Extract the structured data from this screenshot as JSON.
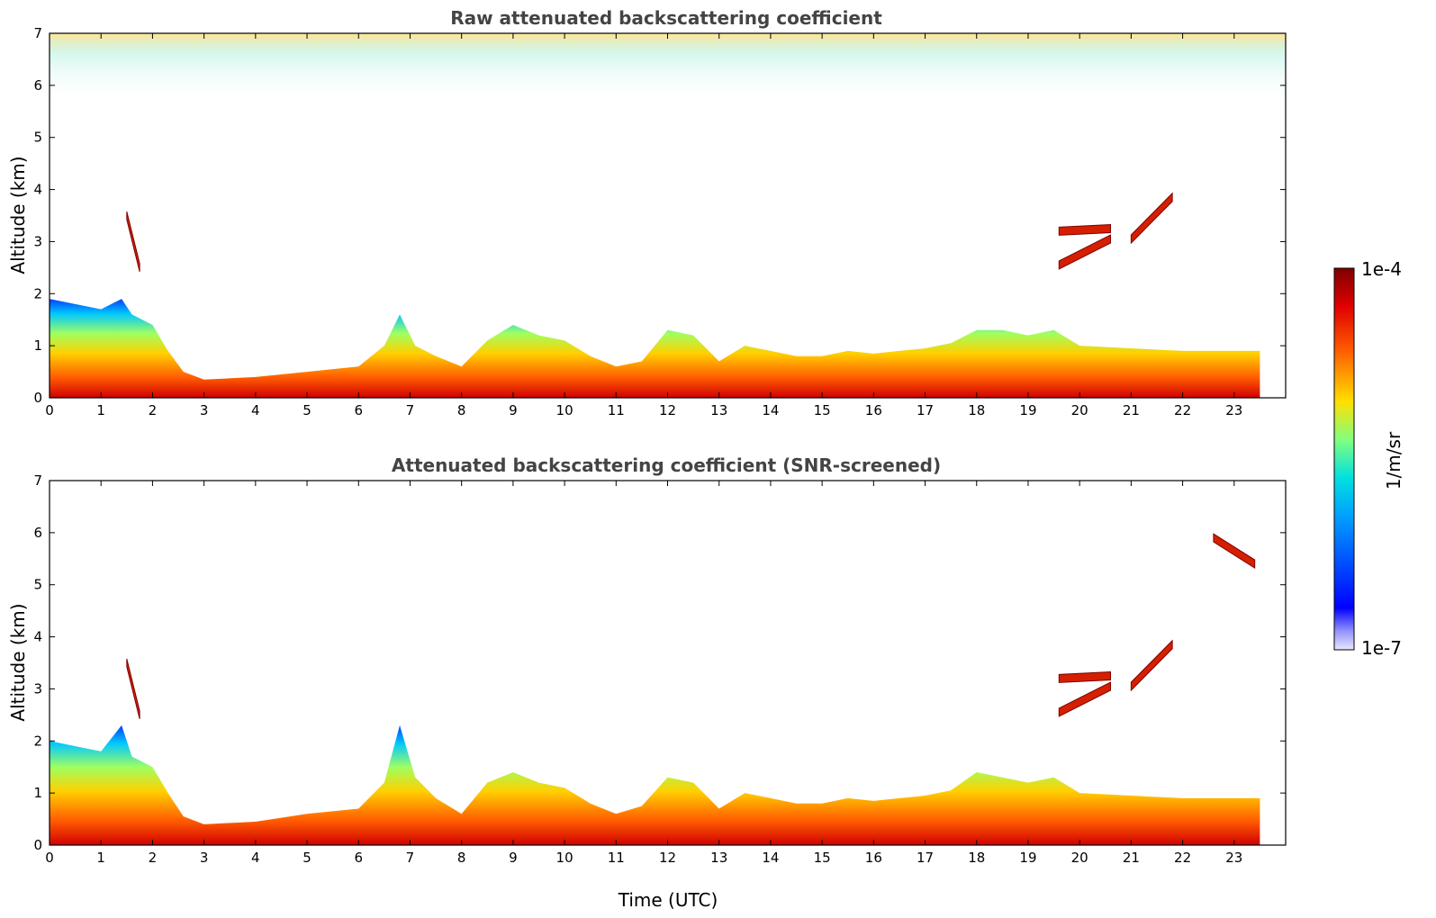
{
  "colors": {
    "scale_low": "#e8e8ff",
    "scale_high": "#7f0000",
    "title_color": "#444444",
    "frame_color": "#000000"
  },
  "colorbar": {
    "label": "1/m/sr",
    "max_label": "1e-4",
    "min_label": "1e-7",
    "range": [
      1e-07,
      0.0001
    ],
    "scale": "log",
    "colormap": "jet"
  },
  "chart_data": [
    {
      "type": "heatmap",
      "title": "Raw attenuated backscattering coefficient",
      "xlabel": "",
      "ylabel": "Altitude (km)",
      "xlim": [
        0,
        24
      ],
      "ylim": [
        0,
        7
      ],
      "xticks": [
        0,
        1,
        2,
        3,
        4,
        5,
        6,
        7,
        8,
        9,
        10,
        11,
        12,
        13,
        14,
        15,
        16,
        17,
        18,
        19,
        20,
        21,
        22,
        23
      ],
      "xtick_labels": [
        "0",
        "1",
        "2",
        "3",
        "4",
        "5",
        "6",
        "7",
        "8",
        "9",
        "10",
        "11",
        "12",
        "13",
        "14",
        "15",
        "16",
        "17",
        "18",
        "19",
        "20",
        "21",
        "22",
        "23"
      ],
      "yticks": [
        0,
        1,
        2,
        3,
        4,
        5,
        6,
        7
      ],
      "ytick_labels": [
        "0",
        "1",
        "2",
        "3",
        "4",
        "5",
        "6",
        "7"
      ],
      "data_end_time": 23.5,
      "boundary_layer_top_km": [
        [
          0,
          1.9
        ],
        [
          0.5,
          1.8
        ],
        [
          1.0,
          1.7
        ],
        [
          1.4,
          1.9
        ],
        [
          1.6,
          1.6
        ],
        [
          2.0,
          1.4
        ],
        [
          2.3,
          0.9
        ],
        [
          2.6,
          0.5
        ],
        [
          3.0,
          0.35
        ],
        [
          4.0,
          0.4
        ],
        [
          5.0,
          0.5
        ],
        [
          6.0,
          0.6
        ],
        [
          6.5,
          1.0
        ],
        [
          6.8,
          1.6
        ],
        [
          7.1,
          1.0
        ],
        [
          7.5,
          0.8
        ],
        [
          8.0,
          0.6
        ],
        [
          8.5,
          1.1
        ],
        [
          9.0,
          1.4
        ],
        [
          9.5,
          1.2
        ],
        [
          10.0,
          1.1
        ],
        [
          10.5,
          0.8
        ],
        [
          11.0,
          0.6
        ],
        [
          11.5,
          0.7
        ],
        [
          12.0,
          1.3
        ],
        [
          12.5,
          1.2
        ],
        [
          13.0,
          0.7
        ],
        [
          13.5,
          1.0
        ],
        [
          14.0,
          0.9
        ],
        [
          14.5,
          0.8
        ],
        [
          15.0,
          0.8
        ],
        [
          15.5,
          0.9
        ],
        [
          16.0,
          0.85
        ],
        [
          16.5,
          0.9
        ],
        [
          17.0,
          0.95
        ],
        [
          17.5,
          1.05
        ],
        [
          18.0,
          1.3
        ],
        [
          18.5,
          1.3
        ],
        [
          19.0,
          1.2
        ],
        [
          19.5,
          1.3
        ],
        [
          20.0,
          1.0
        ],
        [
          21.0,
          0.95
        ],
        [
          22.0,
          0.9
        ],
        [
          23.0,
          0.9
        ],
        [
          23.5,
          0.9
        ]
      ],
      "cloud_layers": [
        {
          "t_start": 19.6,
          "t_end": 20.6,
          "alt_start_km": 2.55,
          "alt_end_km": 3.05
        },
        {
          "t_start": 19.6,
          "t_end": 20.6,
          "alt_start_km": 3.2,
          "alt_end_km": 3.25
        },
        {
          "t_start": 21.0,
          "t_end": 21.8,
          "alt_start_km": 3.05,
          "alt_end_km": 3.85
        },
        {
          "t_start": 1.5,
          "t_end": 1.75,
          "alt_start_km": 3.5,
          "alt_end_km": 2.5
        }
      ]
    },
    {
      "type": "heatmap",
      "title": "Attenuated backscattering coefficient (SNR-screened)",
      "xlabel": "Time (UTC)",
      "ylabel": "Altitude (km)",
      "xlim": [
        0,
        24
      ],
      "ylim": [
        0,
        7
      ],
      "xticks": [
        0,
        1,
        2,
        3,
        4,
        5,
        6,
        7,
        8,
        9,
        10,
        11,
        12,
        13,
        14,
        15,
        16,
        17,
        18,
        19,
        20,
        21,
        22,
        23
      ],
      "xtick_labels": [
        "0",
        "1",
        "2",
        "3",
        "4",
        "5",
        "6",
        "7",
        "8",
        "9",
        "10",
        "11",
        "12",
        "13",
        "14",
        "15",
        "16",
        "17",
        "18",
        "19",
        "20",
        "21",
        "22",
        "23"
      ],
      "yticks": [
        0,
        1,
        2,
        3,
        4,
        5,
        6,
        7
      ],
      "ytick_labels": [
        "0",
        "1",
        "2",
        "3",
        "4",
        "5",
        "6",
        "7"
      ],
      "data_end_time": 23.5,
      "boundary_layer_top_km": [
        [
          0,
          2.0
        ],
        [
          0.5,
          1.9
        ],
        [
          1.0,
          1.8
        ],
        [
          1.4,
          2.3
        ],
        [
          1.6,
          1.7
        ],
        [
          2.0,
          1.5
        ],
        [
          2.3,
          1.0
        ],
        [
          2.6,
          0.55
        ],
        [
          3.0,
          0.4
        ],
        [
          4.0,
          0.45
        ],
        [
          5.0,
          0.6
        ],
        [
          6.0,
          0.7
        ],
        [
          6.5,
          1.2
        ],
        [
          6.8,
          2.3
        ],
        [
          7.1,
          1.3
        ],
        [
          7.5,
          0.9
        ],
        [
          8.0,
          0.6
        ],
        [
          8.5,
          1.2
        ],
        [
          9.0,
          1.4
        ],
        [
          9.5,
          1.2
        ],
        [
          10.0,
          1.1
        ],
        [
          10.5,
          0.8
        ],
        [
          11.0,
          0.6
        ],
        [
          11.5,
          0.75
        ],
        [
          12.0,
          1.3
        ],
        [
          12.5,
          1.2
        ],
        [
          13.0,
          0.7
        ],
        [
          13.5,
          1.0
        ],
        [
          14.0,
          0.9
        ],
        [
          14.5,
          0.8
        ],
        [
          15.0,
          0.8
        ],
        [
          15.5,
          0.9
        ],
        [
          16.0,
          0.85
        ],
        [
          16.5,
          0.9
        ],
        [
          17.0,
          0.95
        ],
        [
          17.5,
          1.05
        ],
        [
          18.0,
          1.4
        ],
        [
          18.5,
          1.3
        ],
        [
          19.0,
          1.2
        ],
        [
          19.5,
          1.3
        ],
        [
          20.0,
          1.0
        ],
        [
          21.0,
          0.95
        ],
        [
          22.0,
          0.9
        ],
        [
          23.0,
          0.9
        ],
        [
          23.5,
          0.9
        ]
      ],
      "cloud_layers": [
        {
          "t_start": 19.6,
          "t_end": 20.6,
          "alt_start_km": 2.55,
          "alt_end_km": 3.05
        },
        {
          "t_start": 19.6,
          "t_end": 20.6,
          "alt_start_km": 3.2,
          "alt_end_km": 3.25
        },
        {
          "t_start": 21.0,
          "t_end": 21.8,
          "alt_start_km": 3.05,
          "alt_end_km": 3.85
        },
        {
          "t_start": 1.5,
          "t_end": 1.75,
          "alt_start_km": 3.5,
          "alt_end_km": 2.5
        },
        {
          "t_start": 22.6,
          "t_end": 23.4,
          "alt_start_km": 5.9,
          "alt_end_km": 5.4
        }
      ]
    }
  ]
}
